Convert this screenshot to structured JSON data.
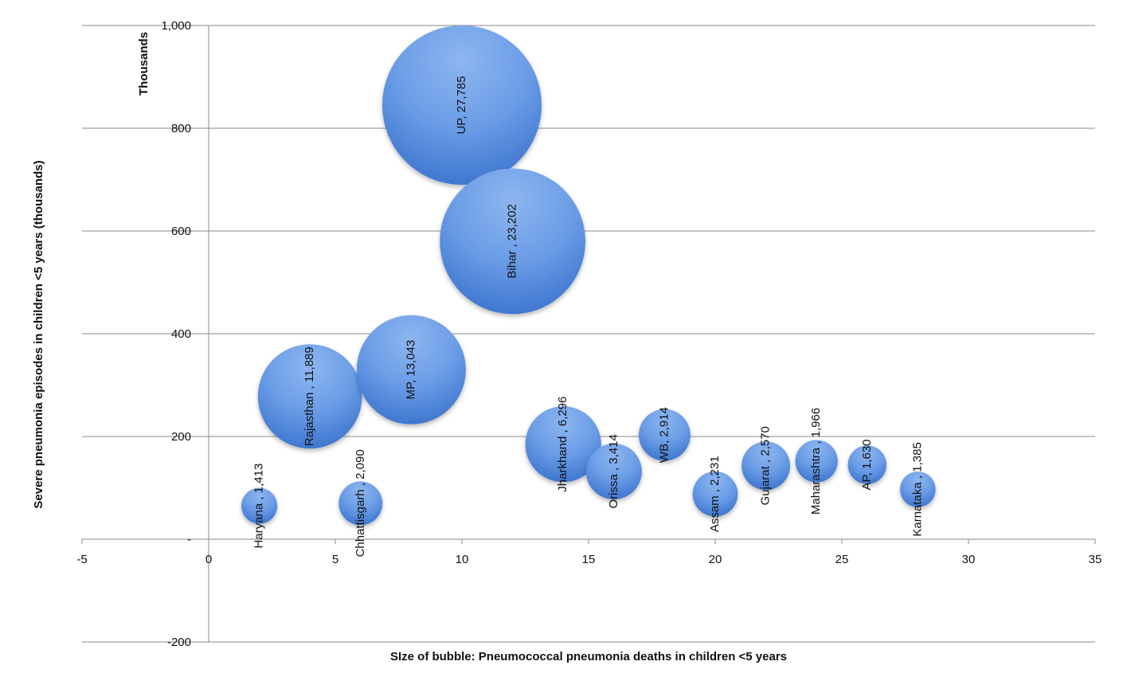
{
  "chart_data": {
    "type": "scatter",
    "subtype": "bubble",
    "xlabel": "SIze of bubble: Pneumococcal pneumonia deaths in children <5 years",
    "ylabel": "Severe pneumonia episodes  in children <5 years (thousands)",
    "y_units_label": "Thousands",
    "xlim": [
      -5,
      35
    ],
    "ylim": [
      -200,
      1000
    ],
    "x_ticks": [
      "-5",
      "0",
      "5",
      "10",
      "15",
      "20",
      "25",
      "30",
      "35"
    ],
    "y_ticks": [
      "-200",
      "-",
      "200",
      "400",
      "600",
      "800",
      "1,000"
    ],
    "grid": "horizontal",
    "bubble_color": "#5b8fdc",
    "series": [
      {
        "label": "Haryana , 1,413",
        "x": 2,
        "y": 65,
        "size": 1413
      },
      {
        "label": "Rajasthan , 11,889",
        "x": 4,
        "y": 278,
        "size": 11889
      },
      {
        "label": "Chhattisgarh , 2,090",
        "x": 6,
        "y": 70,
        "size": 2090
      },
      {
        "label": "MP, 13,043",
        "x": 8,
        "y": 330,
        "size": 13043
      },
      {
        "label": "UP, 27,785",
        "x": 10,
        "y": 845,
        "size": 27785
      },
      {
        "label": "Bihar , 23,202",
        "x": 12,
        "y": 580,
        "size": 23202
      },
      {
        "label": "Jharkhand , 6,296",
        "x": 14,
        "y": 185,
        "size": 6296
      },
      {
        "label": "Orissa , 3,414",
        "x": 16,
        "y": 132,
        "size": 3414
      },
      {
        "label": "WB, 2,914",
        "x": 18,
        "y": 203,
        "size": 2914
      },
      {
        "label": "Assam , 2,231",
        "x": 20,
        "y": 88,
        "size": 2231
      },
      {
        "label": "Gujarat , 2,570",
        "x": 22,
        "y": 143,
        "size": 2570
      },
      {
        "label": "Maharashtra , 1,966",
        "x": 24,
        "y": 152,
        "size": 1966
      },
      {
        "label": "AP, 1,630",
        "x": 26,
        "y": 145,
        "size": 1630
      },
      {
        "label": "Karnataka , 1,385",
        "x": 28,
        "y": 97,
        "size": 1385
      }
    ]
  }
}
